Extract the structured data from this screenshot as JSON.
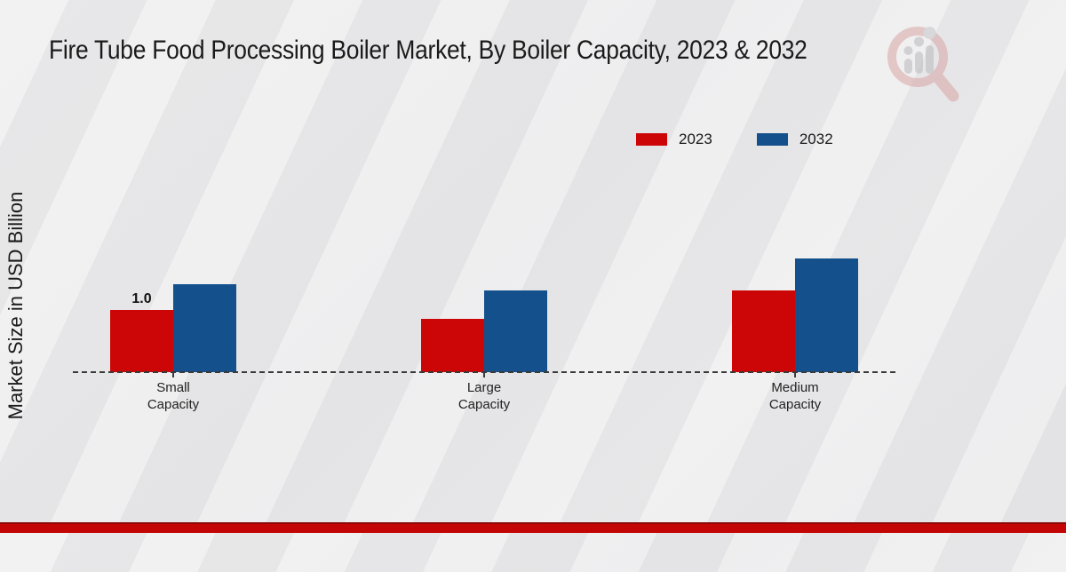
{
  "chart_data": {
    "type": "bar",
    "title": "Fire Tube Food Processing Boiler Market, By Boiler Capacity, 2023 & 2032",
    "ylabel": "Market Size in USD Billion",
    "xlabel": "",
    "categories": [
      "Small Capacity",
      "Large Capacity",
      "Medium Capacity"
    ],
    "series": [
      {
        "name": "2023",
        "color": "#cc0606",
        "values": [
          1.0,
          0.86,
          1.31
        ]
      },
      {
        "name": "2032",
        "color": "#14508c",
        "values": [
          1.41,
          1.31,
          1.83
        ]
      }
    ],
    "bar_labels": [
      {
        "series": "2023",
        "category_index": 0,
        "text": "1.0"
      }
    ],
    "ylim": [
      0,
      2.56
    ],
    "grid": false,
    "legend_position": "top-right",
    "baseline_style": "dashed"
  },
  "colors": {
    "axis_dash": "#3a3a3a",
    "footer_band": "#c40505",
    "text": "#1a1a1a",
    "watermark_red": "#d9a4a4",
    "watermark_gray": "#b9b9bd"
  },
  "watermark": {
    "name": "magnifier-bar-chart-logo"
  }
}
